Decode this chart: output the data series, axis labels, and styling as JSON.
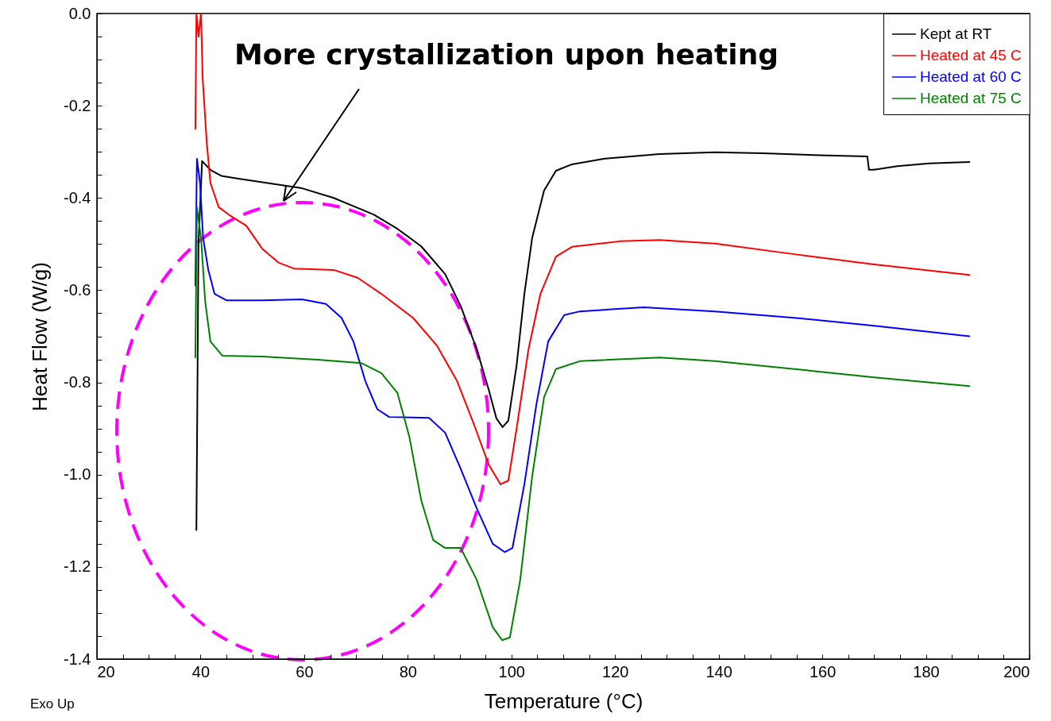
{
  "chart_data": {
    "type": "line",
    "xlabel": "Temperature (°C)",
    "ylabel": "Heat Flow (W/g)",
    "annotations": [
      "More crystallization upon heating",
      "Exo Up"
    ],
    "xlim": [
      20,
      200
    ],
    "ylim": [
      -1.4,
      0
    ],
    "xticks": [
      20,
      {
        "value": 25,
        "label": null
      },
      {
        "value": 30,
        "label": null
      },
      {
        "value": 35,
        "label": null
      },
      40,
      {
        "value": 45,
        "label": null
      },
      {
        "value": 50,
        "label": null
      },
      {
        "value": 55,
        "label": null
      },
      60,
      {
        "value": 65,
        "label": null
      },
      {
        "value": 70,
        "label": null
      },
      {
        "value": 75,
        "label": null
      },
      80,
      {
        "value": 85,
        "label": null
      },
      {
        "value": 90,
        "label": null
      },
      {
        "value": 95,
        "label": null
      },
      100,
      {
        "value": 105,
        "label": null
      },
      {
        "value": 110,
        "label": null
      },
      {
        "value": 115,
        "label": null
      },
      120,
      {
        "value": 125,
        "label": null
      },
      {
        "value": 130,
        "label": null
      },
      {
        "value": 135,
        "label": null
      },
      140,
      {
        "value": 145,
        "label": null
      },
      {
        "value": 150,
        "label": null
      },
      {
        "value": 155,
        "label": null
      },
      160,
      {
        "value": 165,
        "label": null
      },
      {
        "value": 170,
        "label": null
      },
      {
        "value": 175,
        "label": null
      },
      180,
      {
        "value": 185,
        "label": null
      },
      {
        "value": 190,
        "label": null
      },
      {
        "value": 195,
        "label": null
      },
      200
    ],
    "yticks": [
      {
        "value": 0,
        "label": "0.0"
      },
      {
        "value": -0.05,
        "label": null
      },
      {
        "value": -0.1,
        "label": null
      },
      {
        "value": -0.15,
        "label": null
      },
      {
        "value": -0.2,
        "label": "-0.2"
      },
      {
        "value": -0.25,
        "label": null
      },
      {
        "value": -0.3,
        "label": null
      },
      {
        "value": -0.35,
        "label": null
      },
      {
        "value": -0.4,
        "label": "-0.4"
      },
      {
        "value": -0.45,
        "label": null
      },
      {
        "value": -0.5,
        "label": null
      },
      {
        "value": -0.55,
        "label": null
      },
      {
        "value": -0.6,
        "label": "-0.6"
      },
      {
        "value": -0.65,
        "label": null
      },
      {
        "value": -0.7,
        "label": null
      },
      {
        "value": -0.75,
        "label": null
      },
      {
        "value": -0.8,
        "label": "-0.8"
      },
      {
        "value": -0.85,
        "label": null
      },
      {
        "value": -0.9,
        "label": null
      },
      {
        "value": -0.95,
        "label": null
      },
      {
        "value": -1.0,
        "label": "-1.0"
      },
      {
        "value": -1.05,
        "label": null
      },
      {
        "value": -1.1,
        "label": null
      },
      {
        "value": -1.15,
        "label": null
      },
      {
        "value": -1.2,
        "label": "-1.2"
      },
      {
        "value": -1.25,
        "label": null
      },
      {
        "value": -1.3,
        "label": null
      },
      {
        "value": -1.35,
        "label": null
      },
      {
        "value": -1.4,
        "label": "-1.4"
      }
    ],
    "grid": false,
    "legend": "top right",
    "line_style": "solid",
    "series": [
      {
        "name": "Kept at RT",
        "color": "#000000",
        "x": [
          39.2,
          39.6,
          40.3,
          42,
          44,
          47.3,
          59.6,
          65.7,
          73.4,
          78,
          82.6,
          87.2,
          90.2,
          93.3,
          95.6,
          97.1,
          98.3,
          99.4,
          101,
          102.5,
          104,
          106.3,
          108.6,
          111.7,
          117.8,
          128.6,
          139.3,
          148.5,
          160.8,
          168.7,
          169,
          170,
          174.5,
          180.7,
          188.4
        ],
        "values": [
          -1.12,
          -0.5,
          -0.32,
          -0.34,
          -0.352,
          -0.358,
          -0.379,
          -0.4,
          -0.436,
          -0.467,
          -0.505,
          -0.565,
          -0.634,
          -0.728,
          -0.815,
          -0.878,
          -0.897,
          -0.883,
          -0.763,
          -0.608,
          -0.487,
          -0.384,
          -0.341,
          -0.327,
          -0.315,
          -0.305,
          -0.301,
          -0.303,
          -0.308,
          -0.31,
          -0.339,
          -0.339,
          -0.331,
          -0.325,
          -0.322
        ]
      },
      {
        "name": "Heated at 45 C",
        "color": "#ff0000",
        "x": [
          39,
          39.2,
          39.6,
          40.1,
          40.4,
          41.2,
          41.9,
          43.5,
          45.8,
          48.8,
          51.9,
          55,
          58,
          65.7,
          70.3,
          74.9,
          81,
          85.6,
          89.5,
          92.5,
          95.6,
          97.9,
          99.4,
          101,
          103.3,
          105.6,
          108.6,
          111.7,
          120.9,
          128.6,
          139.3,
          154.6,
          170,
          188.4
        ],
        "values": [
          -0.25,
          0,
          -0.05,
          0,
          -0.14,
          -0.28,
          -0.367,
          -0.42,
          -0.439,
          -0.46,
          -0.51,
          -0.54,
          -0.553,
          -0.556,
          -0.573,
          -0.608,
          -0.66,
          -0.72,
          -0.797,
          -0.883,
          -0.978,
          -1.021,
          -1.013,
          -0.9,
          -0.728,
          -0.608,
          -0.527,
          -0.506,
          -0.494,
          -0.491,
          -0.499,
          -0.522,
          -0.544,
          -0.567
        ]
      },
      {
        "name": "Heated at 60 C",
        "color": "#0000ff",
        "x": [
          39,
          39.3,
          39.9,
          40.5,
          41.5,
          42.7,
          45,
          51.9,
          59.6,
          64.2,
          67.2,
          69.5,
          71.8,
          74.1,
          76.4,
          84.1,
          87.2,
          90.2,
          93.3,
          96.4,
          98.7,
          100.2,
          102.5,
          104.8,
          107.1,
          110.2,
          113.2,
          125.5,
          139.3,
          154.6,
          170,
          188.4
        ],
        "values": [
          -0.59,
          -0.315,
          -0.367,
          -0.487,
          -0.556,
          -0.608,
          -0.622,
          -0.622,
          -0.62,
          -0.63,
          -0.66,
          -0.711,
          -0.797,
          -0.858,
          -0.875,
          -0.877,
          -0.909,
          -0.987,
          -1.073,
          -1.15,
          -1.168,
          -1.159,
          -1.021,
          -0.849,
          -0.711,
          -0.654,
          -0.646,
          -0.637,
          -0.646,
          -0.66,
          -0.677,
          -0.7
        ]
      },
      {
        "name": "Heated at 75 C",
        "color": "#008000",
        "x": [
          39,
          39.3,
          40.1,
          40.9,
          41.9,
          44.2,
          51.9,
          62.6,
          71,
          74.9,
          78,
          80.3,
          82.6,
          84.9,
          87.2,
          90.2,
          93.3,
          96.4,
          98.2,
          99.7,
          101.7,
          104,
          106.3,
          108.6,
          113.2,
          128.6,
          139.3,
          154.6,
          170,
          188.4
        ],
        "values": [
          -0.746,
          -0.42,
          -0.487,
          -0.625,
          -0.711,
          -0.742,
          -0.744,
          -0.751,
          -0.758,
          -0.78,
          -0.823,
          -0.918,
          -1.056,
          -1.142,
          -1.159,
          -1.159,
          -1.228,
          -1.331,
          -1.359,
          -1.353,
          -1.228,
          -1.004,
          -0.832,
          -0.771,
          -0.754,
          -0.746,
          -0.754,
          -0.771,
          -0.789,
          -0.808
        ]
      }
    ]
  }
}
